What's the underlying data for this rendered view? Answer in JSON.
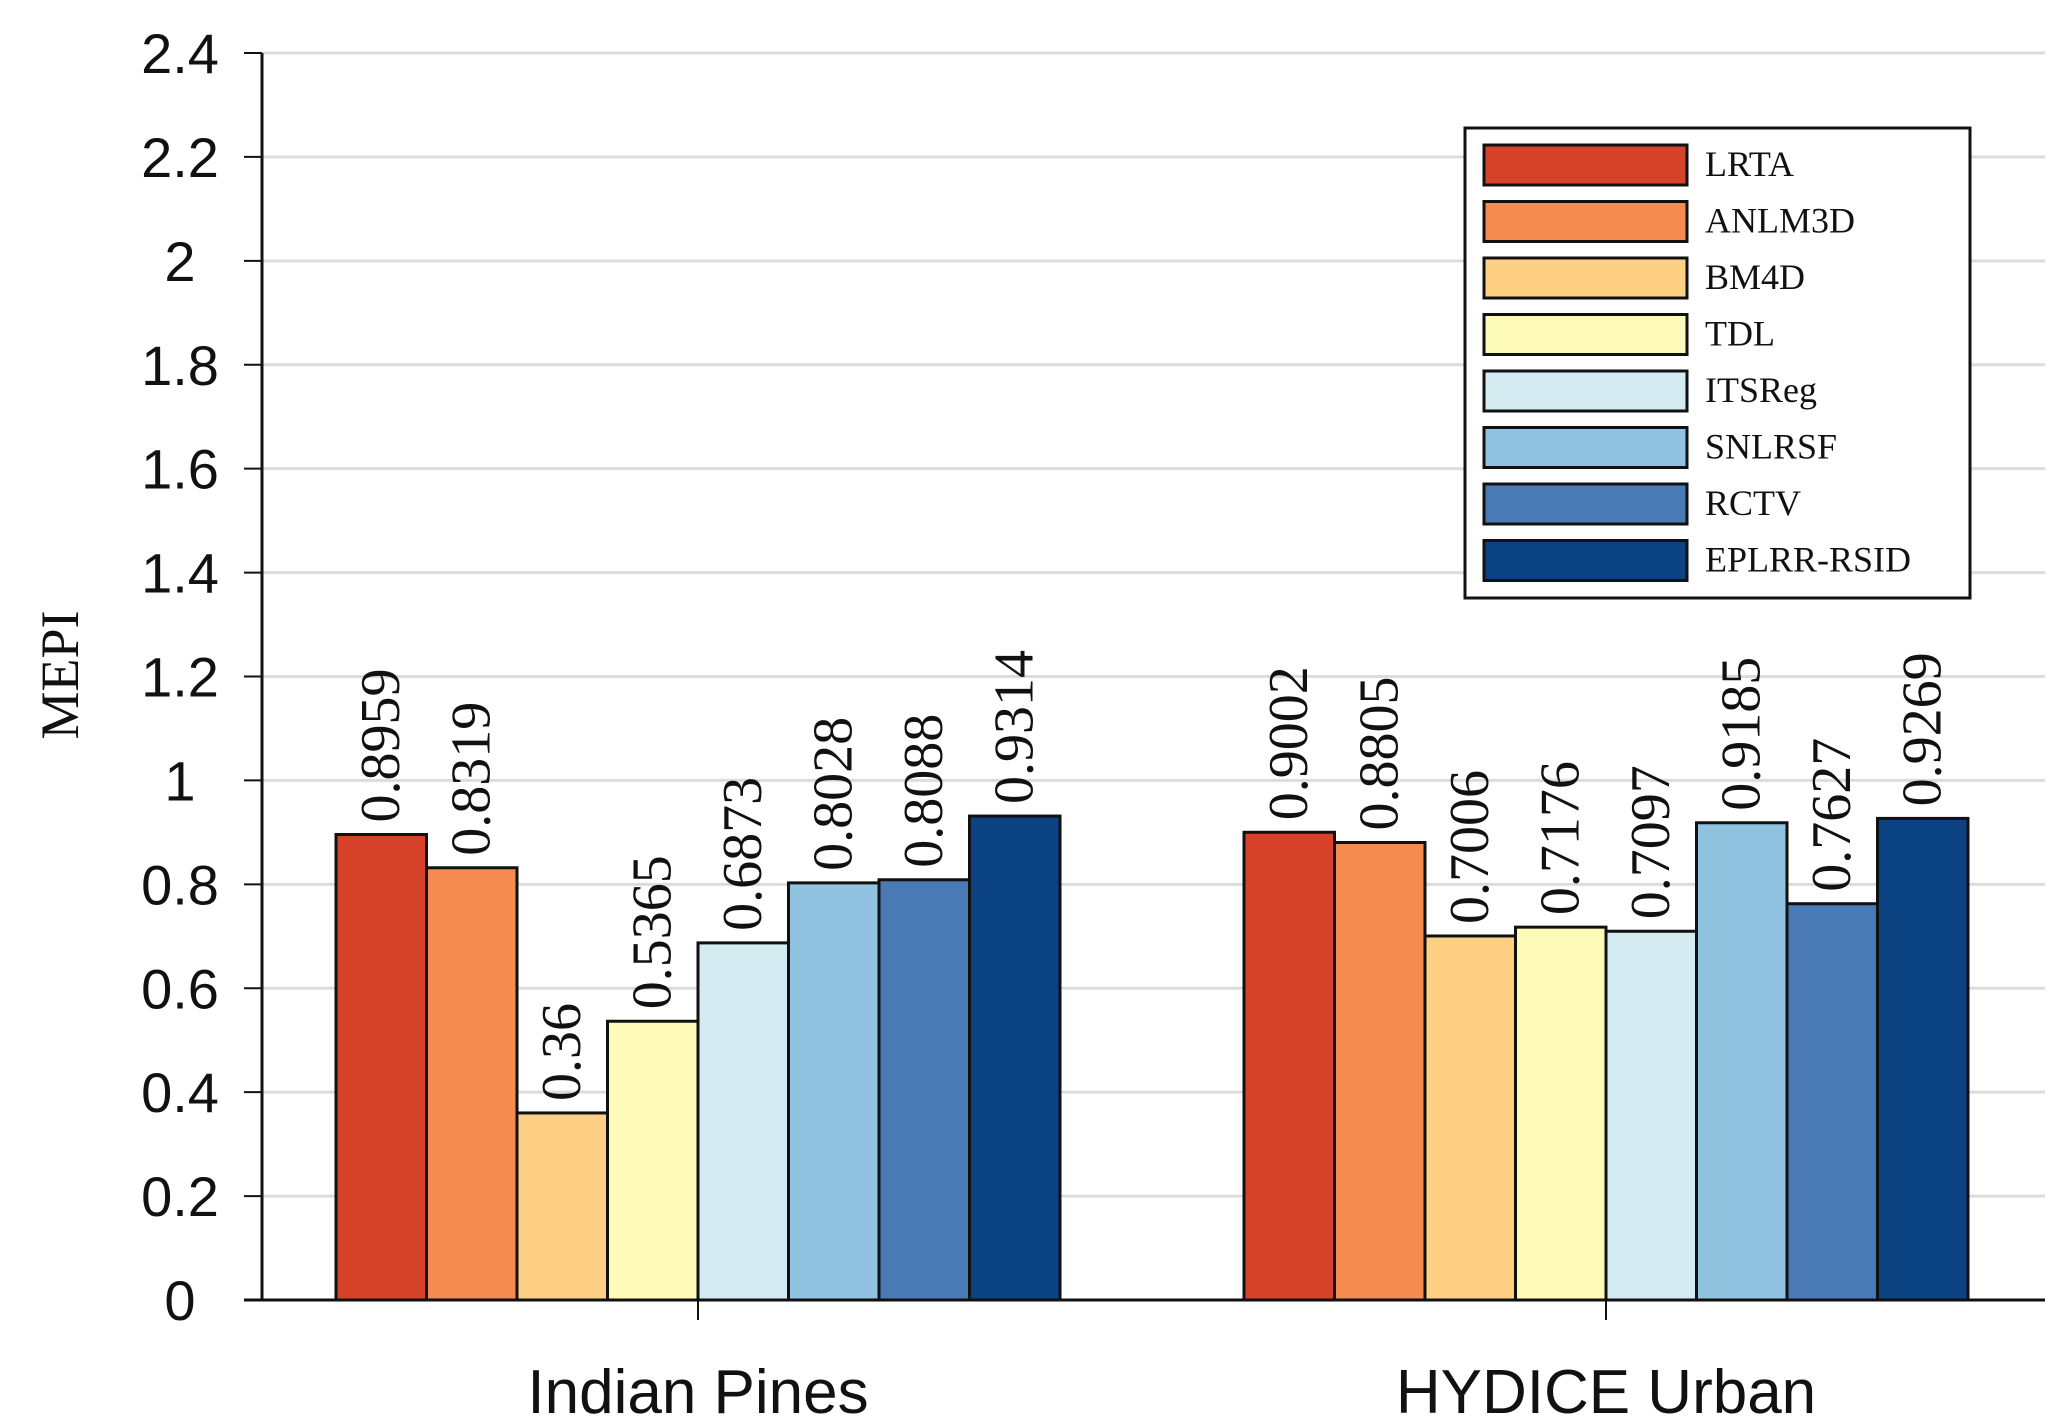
{
  "chart_data": {
    "type": "bar",
    "title": "",
    "xlabel": "",
    "ylabel": "MEPI",
    "ylim": [
      0,
      2.4
    ],
    "yticks": [
      "0",
      "0.2",
      "0.4",
      "0.6",
      "0.8",
      "1",
      "1.2",
      "1.4",
      "1.6",
      "1.8",
      "2",
      "2.2",
      "2.4"
    ],
    "grid": true,
    "legend_position": "top-right",
    "categories": [
      "Indian Pines",
      "HYDICE Urban"
    ],
    "series": [
      {
        "name": "LRTA",
        "color": "#d7432a",
        "values": [
          0.8959,
          0.9002
        ],
        "labels": [
          "0.8959",
          "0.9002"
        ]
      },
      {
        "name": "ANLM3D",
        "color": "#f58b4e",
        "values": [
          0.8319,
          0.8805
        ],
        "labels": [
          "0.8319",
          "0.8805"
        ]
      },
      {
        "name": "BM4D",
        "color": "#fdd084",
        "values": [
          0.36,
          0.7006
        ],
        "labels": [
          "0.36",
          "0.7006"
        ]
      },
      {
        "name": "TDL",
        "color": "#fefbb8",
        "values": [
          0.5365,
          0.7176
        ],
        "labels": [
          "0.5365",
          "0.7176"
        ]
      },
      {
        "name": "ITSReg",
        "color": "#d5ebf2",
        "values": [
          0.6873,
          0.7097
        ],
        "labels": [
          "0.6873",
          "0.7097"
        ]
      },
      {
        "name": "SNLRSF",
        "color": "#91c3e0",
        "values": [
          0.8028,
          0.9185
        ],
        "labels": [
          "0.8028",
          "0.9185"
        ]
      },
      {
        "name": "RCTV",
        "color": "#4a7ab6",
        "values": [
          0.8088,
          0.7627
        ],
        "labels": [
          "0.8088",
          "0.7627"
        ]
      },
      {
        "name": "EPLRR-RSID",
        "color": "#0b4282",
        "values": [
          0.9314,
          0.9269
        ],
        "labels": [
          "0.9314",
          "0.9269"
        ]
      }
    ]
  }
}
